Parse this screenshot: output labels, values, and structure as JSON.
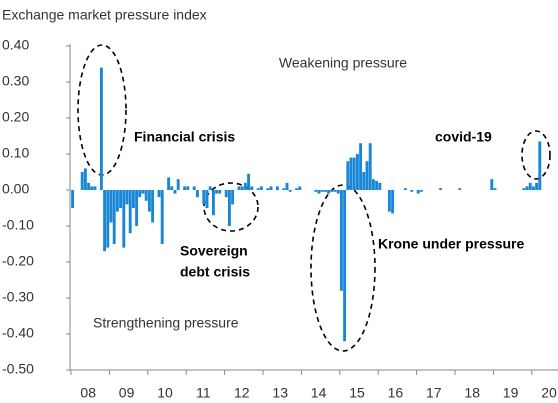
{
  "chart_data": {
    "type": "bar",
    "title": "Exchange market pressure index",
    "annotations": [
      "Weakening pressure",
      "Financial crisis",
      "covid-19",
      "Sovereign",
      "debt crisis",
      "Krone under pressure",
      "Strengthening pressure"
    ],
    "color": "#1a86d6",
    "ylim": [
      -0.5,
      0.4
    ],
    "yticks": [
      {
        "value": 0.4,
        "label": "0.40"
      },
      {
        "value": 0.3,
        "label": "0.30"
      },
      {
        "value": 0.2,
        "label": "0.20"
      },
      {
        "value": 0.1,
        "label": "0.10"
      },
      {
        "value": 0,
        "label": "0.00"
      },
      {
        "value": -0.1,
        "label": "-0.10"
      },
      {
        "value": -0.2,
        "label": "-0.20"
      },
      {
        "value": -0.3,
        "label": "-0.30"
      },
      {
        "value": -0.4,
        "label": "-0.40"
      },
      {
        "value": -0.5,
        "label": "-0.50"
      }
    ],
    "categories": [
      null,
      null,
      null,
      null,
      null,
      null,
      "08",
      null,
      null,
      null,
      null,
      null,
      null,
      null,
      null,
      null,
      null,
      null,
      "09",
      null,
      null,
      null,
      null,
      null,
      null,
      null,
      null,
      null,
      null,
      null,
      "10",
      null,
      null,
      null,
      null,
      null,
      null,
      null,
      null,
      null,
      null,
      null,
      "11",
      null,
      null,
      null,
      null,
      null,
      null,
      null,
      null,
      null,
      null,
      null,
      "12",
      null,
      null,
      null,
      null,
      null,
      null,
      null,
      null,
      null,
      null,
      null,
      "13",
      null,
      null,
      null,
      null,
      null,
      null,
      null,
      null,
      null,
      null,
      null,
      "14",
      null,
      null,
      null,
      null,
      null,
      null,
      null,
      null,
      null,
      null,
      null,
      "15",
      null,
      null,
      null,
      null,
      null,
      null,
      null,
      null,
      null,
      null,
      null,
      "16",
      null,
      null,
      null,
      null,
      null,
      null,
      null,
      null,
      null,
      null,
      null,
      "17",
      null,
      null,
      null,
      null,
      null,
      null,
      null,
      null,
      null,
      null,
      null,
      "18",
      null,
      null,
      null,
      null,
      null,
      null,
      null,
      null,
      null,
      null,
      null,
      "19",
      null,
      null,
      null,
      null,
      null,
      null,
      null,
      null,
      null,
      null,
      null,
      "20"
    ],
    "values": [
      -0.05,
      0.0,
      0.0,
      0.05,
      0.06,
      0.02,
      0.01,
      0.01,
      0.0,
      0.34,
      -0.17,
      -0.16,
      -0.09,
      -0.15,
      -0.06,
      -0.05,
      -0.16,
      -0.04,
      -0.12,
      -0.05,
      -0.1,
      -0.02,
      -0.01,
      -0.03,
      -0.06,
      -0.09,
      0.0,
      -0.02,
      -0.15,
      0.0,
      0.035,
      0.01,
      -0.01,
      0.03,
      0.0,
      0.01,
      0.01,
      0.0,
      0.01,
      -0.02,
      0.0,
      -0.04,
      -0.05,
      0.01,
      -0.07,
      -0.01,
      -0.01,
      0.0,
      -0.02,
      -0.1,
      -0.04,
      0.0,
      0.01,
      0.01,
      0.02,
      0.045,
      0.01,
      0.0,
      0.005,
      0.01,
      0.0,
      0.005,
      0.01,
      0.0,
      0.01,
      0.0,
      0.005,
      0.02,
      -0.005,
      0.0,
      0.005,
      0.01,
      0.0,
      0.0,
      0.0,
      0.0,
      -0.005,
      -0.01,
      -0.005,
      -0.005,
      -0.01,
      -0.005,
      -0.005,
      -0.01,
      -0.28,
      -0.42,
      0.08,
      0.09,
      0.09,
      0.1,
      0.13,
      0.05,
      0.08,
      0.13,
      0.03,
      0.025,
      0.02,
      0.0,
      0.0,
      -0.06,
      -0.065,
      0.0,
      0.0,
      0.0,
      0.005,
      0.0,
      -0.005,
      0.0,
      -0.01,
      -0.005,
      0.0,
      0.0,
      0.0,
      0.0,
      0.0,
      0.005,
      0.0,
      0.0,
      0.0,
      0.0,
      0.0,
      0.005,
      0.0,
      0.0,
      0.0,
      0.0,
      0.0,
      0.0,
      0.0,
      0.0,
      0.0,
      0.03,
      0.005,
      0.0,
      0.0,
      0.0,
      0.0,
      0.0,
      0.0,
      0.0,
      0.0,
      0.005,
      0.01,
      0.02,
      0.01,
      0.02,
      0.135,
      null,
      null,
      null,
      null
    ]
  }
}
